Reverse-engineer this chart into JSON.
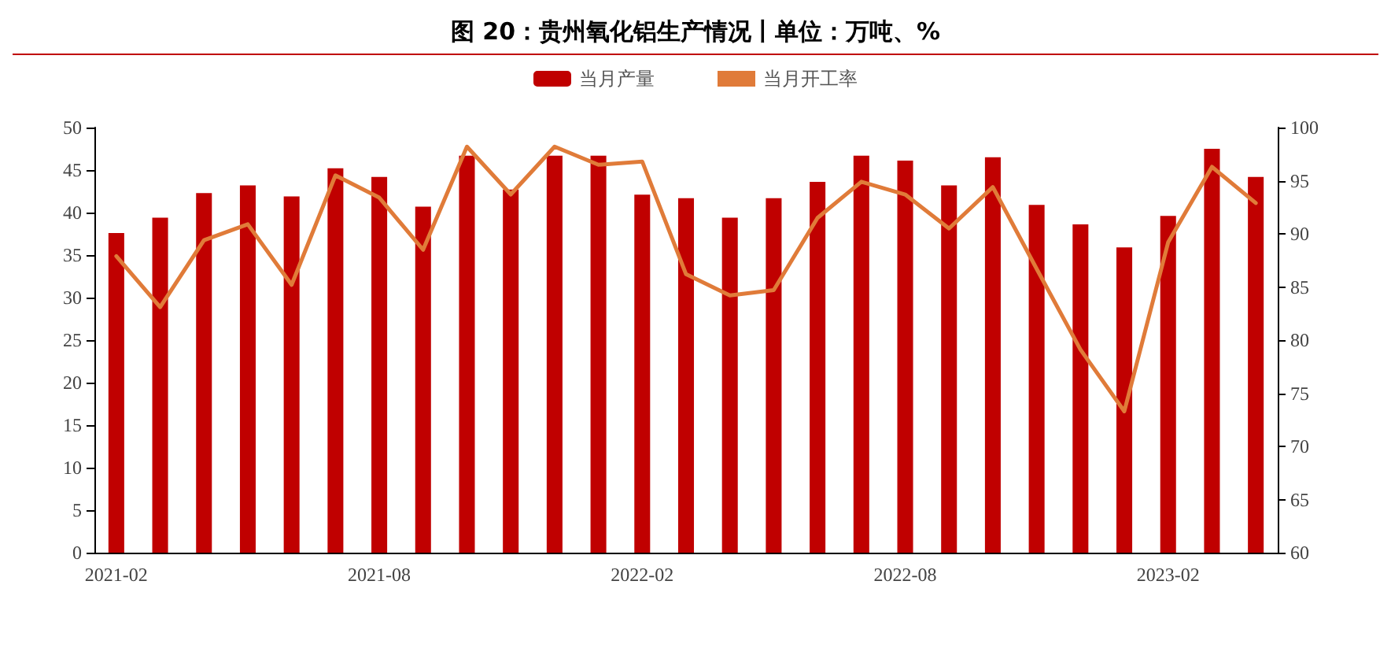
{
  "chart_data": {
    "type": "bar",
    "title": "图 20：贵州氧化铝生产情况丨单位：万吨、%",
    "categories": [
      "2021-02",
      null,
      null,
      null,
      null,
      null,
      "2021-08",
      null,
      null,
      null,
      null,
      null,
      "2022-02",
      null,
      null,
      null,
      null,
      null,
      "2022-08",
      null,
      null,
      null,
      null,
      null,
      "2023-02",
      null,
      null
    ],
    "series": [
      {
        "name": "当月产量",
        "color": "#c00000",
        "values": [
          37.6,
          39.4,
          42.3,
          43.2,
          41.9,
          45.2,
          44.2,
          40.7,
          46.7,
          42.7,
          46.7,
          46.7,
          42.1,
          41.7,
          39.4,
          41.7,
          43.6,
          46.7,
          46.1,
          43.2,
          46.5,
          40.9,
          38.6,
          35.9,
          39.6,
          47.5,
          44.2
        ]
      },
      {
        "name": "当月开工率",
        "type": "line",
        "axis": "y2",
        "color": "#e07b39",
        "values": [
          87.9,
          83.1,
          89.4,
          90.9,
          85.2,
          95.5,
          93.4,
          88.5,
          98.2,
          93.7,
          98.2,
          96.5,
          96.8,
          86.2,
          84.2,
          84.7,
          91.5,
          94.9,
          93.7,
          90.5,
          94.4,
          86.7,
          79.1,
          73.3,
          89.2,
          96.3,
          92.9
        ]
      }
    ],
    "ylim": [
      0,
      50
    ],
    "yticks": [
      0,
      5,
      10,
      15,
      20,
      25,
      30,
      35,
      40,
      45,
      50
    ],
    "y2lim": [
      60,
      100
    ],
    "y2ticks": [
      60,
      65,
      70,
      75,
      80,
      85,
      90,
      95,
      100
    ],
    "legend": "top",
    "grid": false,
    "marker": "none",
    "line_style": "solid"
  }
}
